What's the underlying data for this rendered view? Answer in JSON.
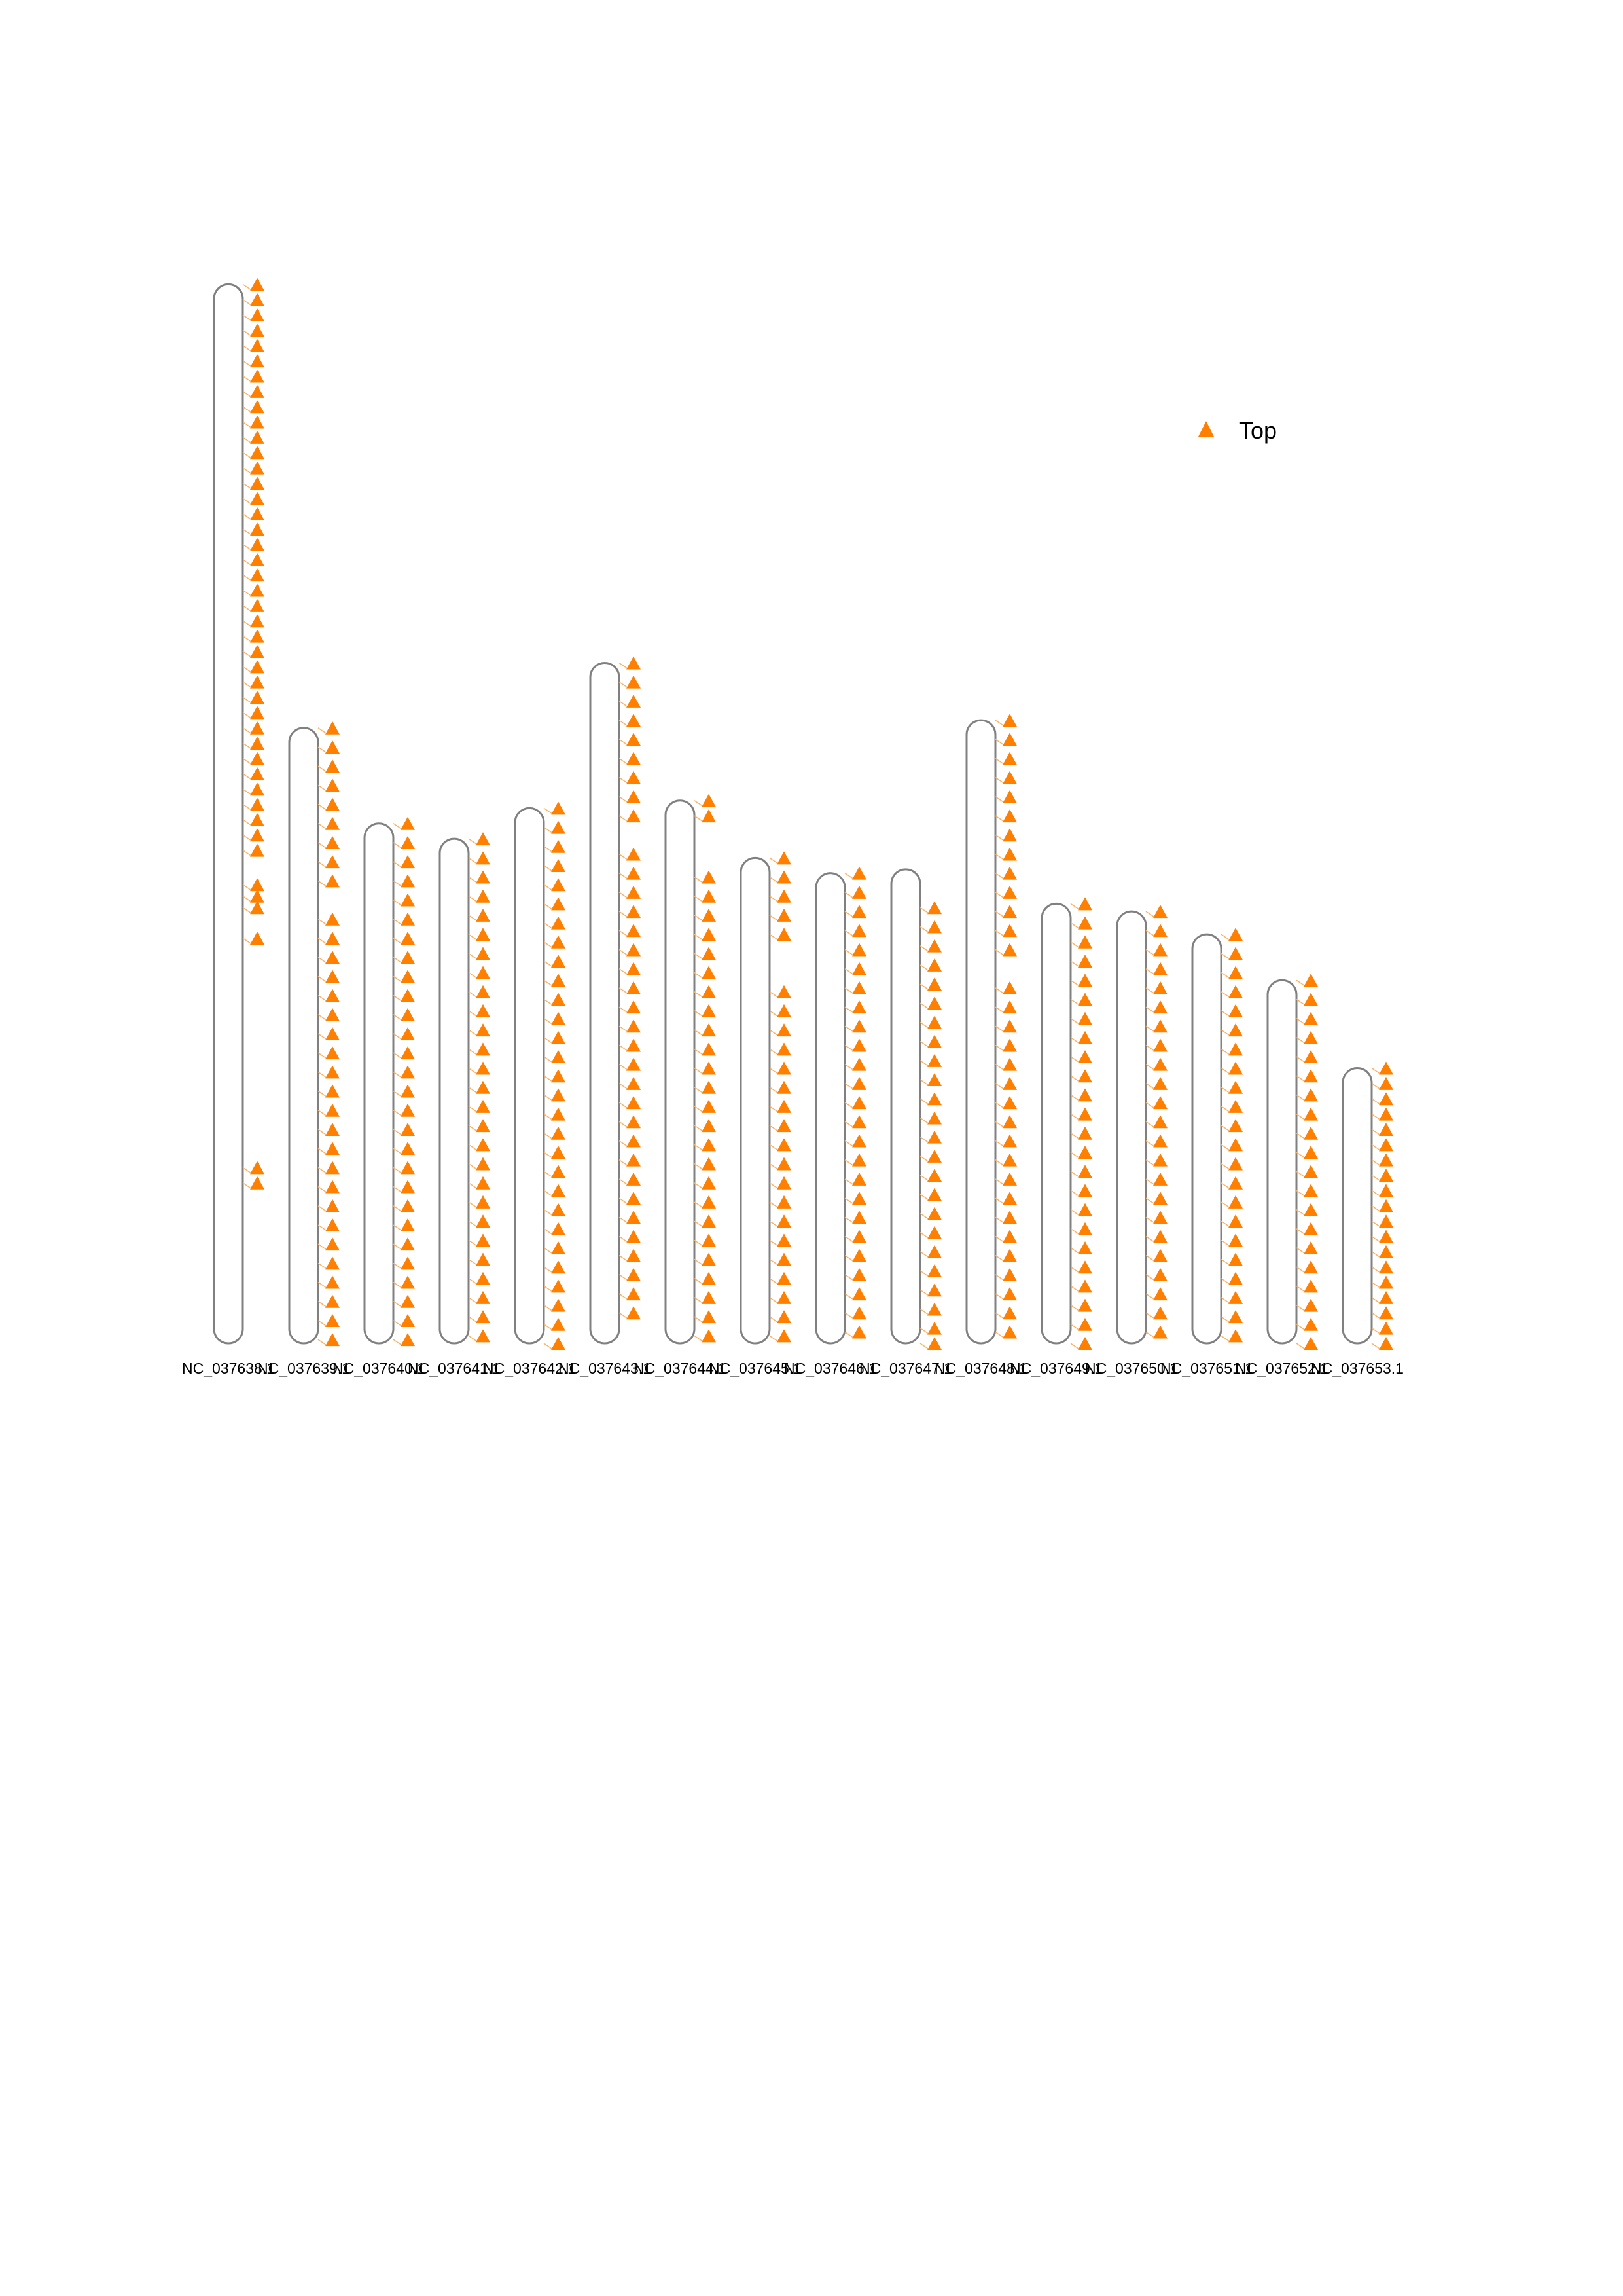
{
  "chart_data": {
    "type": "chromosome-map",
    "unit": "Mb",
    "marker_color": "#FF8000",
    "link_color": "#FFB060",
    "chromosome_outline_color": "#808080",
    "legend": {
      "label": "Top",
      "marker": "triangle-icon",
      "placement": "top-right"
    },
    "chromosomes": [
      {
        "name": "NC_037638.1",
        "length": 27.7,
        "markers": [
          0,
          0.4,
          0.8,
          1.2,
          1.6,
          2.0,
          2.4,
          2.8,
          3.2,
          3.6,
          4.0,
          4.4,
          4.8,
          5.2,
          5.6,
          6.0,
          6.4,
          6.8,
          7.2,
          7.6,
          8.0,
          8.4,
          8.8,
          9.2,
          9.6,
          10.0,
          10.4,
          10.8,
          11.2,
          11.6,
          12.0,
          12.4,
          12.8,
          13.2,
          13.6,
          14.0,
          14.4,
          14.8,
          15.7,
          16.0,
          16.3,
          17.1,
          23.1,
          23.5
        ]
      },
      {
        "name": "NC_037639.1",
        "length": 16.1,
        "markers": [
          0,
          0.5,
          1,
          1.5,
          2,
          2.5,
          3,
          3.5,
          4,
          5,
          5.5,
          6,
          6.5,
          7,
          7.5,
          8,
          8.5,
          9,
          9.5,
          10,
          10.5,
          11,
          11.5,
          12,
          12.5,
          13,
          13.5,
          14,
          14.5,
          15,
          15.5,
          16
        ]
      },
      {
        "name": "NC_037640.1",
        "length": 13.6,
        "markers": [
          0,
          0.5,
          1,
          1.5,
          2,
          2.5,
          3,
          3.5,
          4,
          4.5,
          5,
          5.5,
          6,
          6.5,
          7,
          7.5,
          8,
          8.5,
          9,
          9.5,
          10,
          10.5,
          11,
          11.5,
          12,
          12.5,
          13,
          13.5
        ]
      },
      {
        "name": "NC_037641.1",
        "length": 13.2,
        "markers": [
          0,
          0.5,
          1,
          1.5,
          2,
          2.5,
          3,
          3.5,
          4,
          4.5,
          5,
          5.5,
          6,
          6.5,
          7,
          7.5,
          8,
          8.5,
          9,
          9.5,
          10,
          10.5,
          11,
          11.5,
          12,
          12.5,
          13
        ]
      },
      {
        "name": "NC_037642.1",
        "length": 14.0,
        "markers": [
          0,
          0.5,
          1,
          1.5,
          2,
          2.5,
          3,
          3.5,
          4,
          4.5,
          5,
          5.5,
          6,
          6.5,
          7,
          7.5,
          8,
          8.5,
          9,
          9.5,
          10,
          10.5,
          11,
          11.5,
          12,
          12.5,
          13,
          13.5,
          14
        ]
      },
      {
        "name": "NC_037643.1",
        "length": 17.8,
        "markers": [
          0,
          0.5,
          1,
          1.5,
          2,
          2.5,
          3,
          3.5,
          4,
          5,
          5.5,
          6,
          6.5,
          7,
          7.5,
          8,
          8.5,
          9,
          9.5,
          10,
          10.5,
          11,
          11.5,
          12,
          12.5,
          13,
          13.5,
          14,
          14.5,
          15,
          15.5,
          16,
          16.5,
          17
        ]
      },
      {
        "name": "NC_037644.1",
        "length": 14.2,
        "markers": [
          0,
          0.4,
          2,
          2.5,
          3,
          3.5,
          4,
          4.5,
          5,
          5.5,
          6,
          6.5,
          7,
          7.5,
          8,
          8.5,
          9,
          9.5,
          10,
          10.5,
          11,
          11.5,
          12,
          12.5,
          13,
          13.5,
          14
        ]
      },
      {
        "name": "NC_037645.1",
        "length": 12.7,
        "markers": [
          0,
          0.5,
          1,
          1.5,
          2,
          3.5,
          4,
          4.5,
          5,
          5.5,
          6,
          6.5,
          7,
          7.5,
          8,
          8.5,
          9,
          9.5,
          10,
          10.5,
          11,
          11.5,
          12,
          12.5
        ]
      },
      {
        "name": "NC_037646.1",
        "length": 12.3,
        "markers": [
          0,
          0.5,
          1,
          1.5,
          2,
          2.5,
          3,
          3.5,
          4,
          4.5,
          5,
          5.5,
          6,
          6.5,
          7,
          7.5,
          8,
          8.5,
          9,
          9.5,
          10,
          10.5,
          11,
          11.5,
          12
        ]
      },
      {
        "name": "NC_037647.1",
        "length": 12.4,
        "markers": [
          1,
          1.5,
          2,
          2.5,
          3,
          3.5,
          4,
          4.5,
          5,
          5.5,
          6,
          6.5,
          7,
          7.5,
          8,
          8.5,
          9,
          9.5,
          10,
          10.5,
          11,
          11.5,
          12,
          12.4
        ]
      },
      {
        "name": "NC_037648.1",
        "length": 16.3,
        "markers": [
          0,
          0.5,
          1,
          1.5,
          2,
          2.5,
          3,
          3.5,
          4,
          4.5,
          5,
          5.5,
          6,
          7,
          7.5,
          8,
          8.5,
          9,
          9.5,
          10,
          10.5,
          11,
          11.5,
          12,
          12.5,
          13,
          13.5,
          14,
          14.5,
          15,
          15.5,
          16
        ]
      },
      {
        "name": "NC_037649.1",
        "length": 11.5,
        "markers": [
          0,
          0.5,
          1,
          1.5,
          2,
          2.5,
          3,
          3.5,
          4,
          4.5,
          5,
          5.5,
          6,
          6.5,
          7,
          7.5,
          8,
          8.5,
          9,
          9.5,
          10,
          10.5,
          11,
          11.5
        ]
      },
      {
        "name": "NC_037650.1",
        "length": 11.3,
        "markers": [
          0,
          0.5,
          1,
          1.5,
          2,
          2.5,
          3,
          3.5,
          4,
          4.5,
          5,
          5.5,
          6,
          6.5,
          7,
          7.5,
          8,
          8.5,
          9,
          9.5,
          10,
          10.5,
          11
        ]
      },
      {
        "name": "NC_037651.1",
        "length": 10.7,
        "markers": [
          0,
          0.5,
          1,
          1.5,
          2,
          2.5,
          3,
          3.5,
          4,
          4.5,
          5,
          5.5,
          6,
          6.5,
          7,
          7.5,
          8,
          8.5,
          9,
          9.5,
          10,
          10.5
        ]
      },
      {
        "name": "NC_037652.1",
        "length": 9.5,
        "markers": [
          0,
          0.5,
          1,
          1.5,
          2,
          2.5,
          3,
          3.5,
          4,
          4.5,
          5,
          5.5,
          6,
          6.5,
          7,
          7.5,
          8,
          8.5,
          9,
          9.5
        ]
      },
      {
        "name": "NC_037653.1",
        "length": 7.2,
        "markers": [
          0,
          0.4,
          0.8,
          1.2,
          1.6,
          2.0,
          2.4,
          2.8,
          3.2,
          3.6,
          4.0,
          4.4,
          4.8,
          5.2,
          5.6,
          6.0,
          6.4,
          6.8,
          7.2
        ]
      }
    ]
  }
}
